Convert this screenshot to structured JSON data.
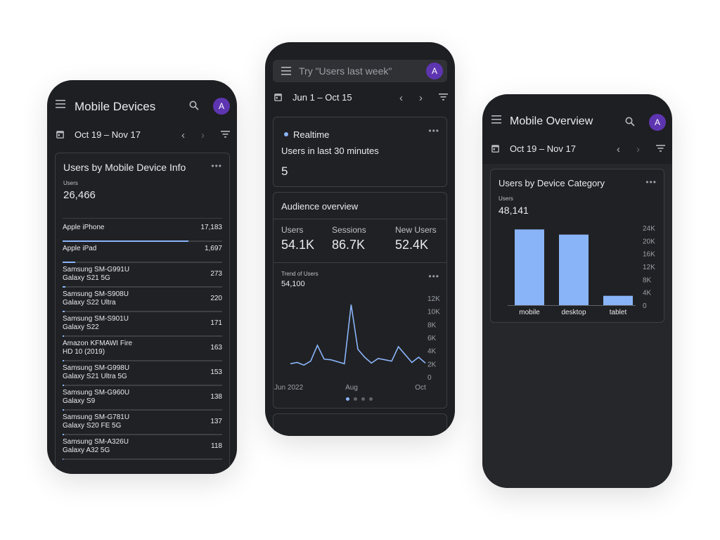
{
  "phone1": {
    "title": "Mobile Devices",
    "avatar": "A",
    "date_range": "Oct 19 – Nov 17",
    "card_title": "Users by Mobile Device Info",
    "metric_label": "Users",
    "metric_value": "26,466",
    "rows": [
      {
        "name1": "Apple iPhone",
        "name2": "",
        "value": "17,183",
        "fraction": 1.0
      },
      {
        "name1": "Apple iPad",
        "name2": "",
        "value": "1,697",
        "fraction": 0.1
      },
      {
        "name1": "Samsung SM-G991U",
        "name2": "Galaxy S21 5G",
        "value": "273",
        "fraction": 0.02
      },
      {
        "name1": "Samsung SM-S908U",
        "name2": "Galaxy S22 Ultra",
        "value": "220",
        "fraction": 0.015
      },
      {
        "name1": "Samsung SM-S901U",
        "name2": "Galaxy S22",
        "value": "171",
        "fraction": 0.012
      },
      {
        "name1": "Amazon KFMAWI Fire",
        "name2": "HD 10 (2019)",
        "value": "163",
        "fraction": 0.011
      },
      {
        "name1": "Samsung SM-G998U",
        "name2": "Galaxy S21 Ultra 5G",
        "value": "153",
        "fraction": 0.01
      },
      {
        "name1": "Samsung SM-G960U",
        "name2": "Galaxy S9",
        "value": "138",
        "fraction": 0.009
      },
      {
        "name1": "Samsung SM-G781U",
        "name2": "Galaxy S20 FE 5G",
        "value": "137",
        "fraction": 0.009
      },
      {
        "name1": "Samsung SM-A326U",
        "name2": "Galaxy A32 5G",
        "value": "118",
        "fraction": 0.008
      }
    ]
  },
  "phone2": {
    "search_placeholder": "Try \"Users last week\"",
    "avatar": "A",
    "date_range": "Jun 1 – Oct 15",
    "realtime_label": "Realtime",
    "realtime_subtitle": "Users in last 30 minutes",
    "realtime_value": "5",
    "audience_title": "Audience overview",
    "metrics": [
      {
        "label": "Users",
        "value": "54.1K"
      },
      {
        "label": "Sessions",
        "value": "86.7K"
      },
      {
        "label": "New Users",
        "value": "52.4K"
      }
    ],
    "trend_label": "Trend of Users",
    "trend_value": "54,100"
  },
  "phone3": {
    "title": "Mobile Overview",
    "avatar": "A",
    "date_range": "Oct 19 – Nov 17",
    "card_title": "Users by Device Category",
    "metric_label": "Users",
    "metric_value": "48,141"
  },
  "colors": {
    "accent": "#8ab4f8",
    "background": "#1e1f22",
    "avatar": "#5e35b1"
  },
  "chart_data": [
    {
      "type": "line",
      "title": "Trend of Users",
      "x_ticks": [
        "Jun 2022",
        "Aug",
        "Oct"
      ],
      "y_ticks": [
        "0",
        "2K",
        "4K",
        "6K",
        "8K",
        "10K",
        "12K"
      ],
      "ylim": [
        0,
        12000
      ],
      "series": [
        {
          "values": [
            2000,
            2200,
            1800,
            2400,
            4800,
            2700,
            2600,
            2300,
            2000,
            11000,
            4200,
            3000,
            2100,
            2800,
            2600,
            2400,
            4600,
            3400,
            2200,
            3000,
            2100
          ]
        }
      ]
    },
    {
      "type": "bar",
      "title": "Users by Device Category",
      "categories": [
        "mobile",
        "desktop",
        "tablet"
      ],
      "values": [
        23500,
        21900,
        2900
      ],
      "y_ticks": [
        "0",
        "4K",
        "8K",
        "12K",
        "16K",
        "20K",
        "24K"
      ],
      "ylim": [
        0,
        24000
      ]
    }
  ]
}
